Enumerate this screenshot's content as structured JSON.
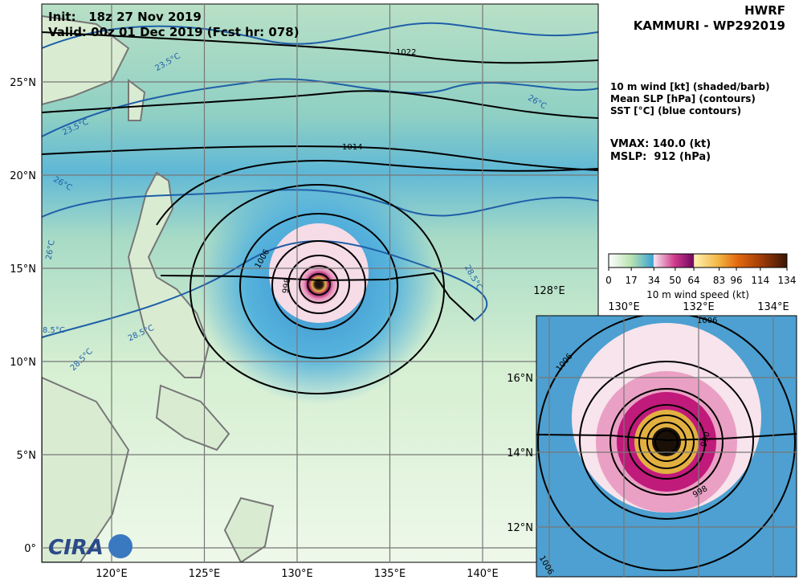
{
  "header": {
    "model": "HWRF",
    "storm": "KAMMURI - WP292019",
    "init": "Init:   18z 27 Nov 2019",
    "valid": "Valid: 00z 01 Dec 2019 (Fcst hr: 078)"
  },
  "legend": {
    "lines": [
      "10 m wind [kt] (shaded/barb)",
      "Mean SLP [hPa] (contours)",
      "SST [°C] (blue contours)"
    ],
    "vmax": "VMAX: 140.0 (kt)",
    "mslp": "MSLP:  912 (hPa)"
  },
  "colorbar": {
    "ticks": [
      0,
      17,
      34,
      50,
      64,
      83,
      96,
      114,
      134
    ],
    "label": "10 m wind speed (kt)"
  },
  "main_map": {
    "lon_ticks": [
      {
        "value": 120,
        "label": "120°E"
      },
      {
        "value": 125,
        "label": "125°E"
      },
      {
        "value": 130,
        "label": "130°E"
      },
      {
        "value": 135,
        "label": "135°E"
      },
      {
        "value": 140,
        "label": "140°E"
      }
    ],
    "lat_ticks": [
      {
        "value": 0,
        "label": "0°"
      },
      {
        "value": 5,
        "label": "5°N"
      },
      {
        "value": 10,
        "label": "10°N"
      },
      {
        "value": 15,
        "label": "15°N"
      },
      {
        "value": 20,
        "label": "20°N"
      },
      {
        "value": 25,
        "label": "25°N"
      }
    ],
    "contour_labels": [
      "1022",
      "1014",
      "1006",
      "998"
    ],
    "sst_labels": [
      "23.5°C",
      "23.5°C",
      "26°C",
      "26°C",
      "26°C",
      "28.5°C",
      "28.5°C",
      "28.5°C",
      "8.5°C"
    ]
  },
  "inset_map": {
    "lon_ticks": [
      {
        "value": 128,
        "label": "128°E"
      },
      {
        "value": 130,
        "label": "130°E"
      },
      {
        "value": 132,
        "label": "132°E"
      },
      {
        "value": 134,
        "label": "134°E"
      }
    ],
    "lat_ticks": [
      {
        "value": 12,
        "label": "12°N"
      },
      {
        "value": 14,
        "label": "14°N"
      },
      {
        "value": 16,
        "label": "16°N"
      }
    ],
    "contour_labels": [
      "1006",
      "1006",
      "998",
      "990",
      "1006"
    ]
  }
}
